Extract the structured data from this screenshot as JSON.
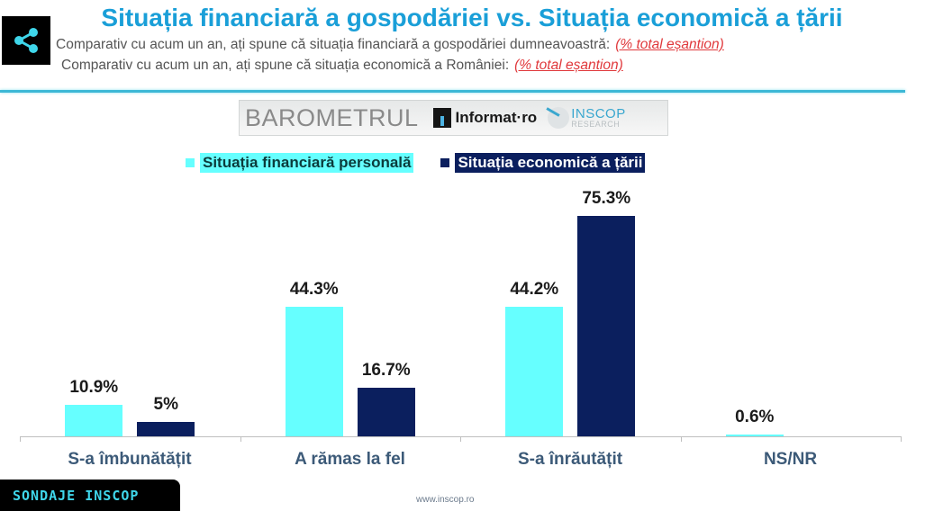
{
  "header": {
    "title": "Situația financiară a gospodăriei vs. Situația economică a țării",
    "subtitle_1": "Comparativ cu acum un an, ați spune că situația financiară a gospodăriei dumneavoastră:",
    "subtitle_1_note": "(% total eșantion)",
    "subtitle_2": "Comparativ cu acum un an, ați spune că situația economică a României:",
    "subtitle_2_note": "(% total eșantion)",
    "share_icon": "share-icon"
  },
  "logos": {
    "barometrul": "BAROMETRUL",
    "informat": "Informat·ro",
    "inscop": "INSCOP",
    "inscop_sub": "RESEARCH"
  },
  "colors": {
    "title": "#1a9fd8",
    "series_personal": "#66ffff",
    "series_country": "#0b1f5e",
    "note_red": "#e0383b",
    "category_label": "#3c5a78",
    "footer_accent": "#3fd6ea"
  },
  "chart_data": {
    "type": "bar",
    "title": "Situația financiară a gospodăriei vs. Situația economică a țării",
    "categories": [
      "S-a îmbunătățit",
      "A rămas la fel",
      "S-a înrăutățit",
      "NS/NR"
    ],
    "series": [
      {
        "name": "Situația financiară personală",
        "color": "#66ffff",
        "values": [
          10.9,
          44.3,
          44.2,
          0.6
        ],
        "labels": [
          "10.9%",
          "44.3%",
          "44.2%",
          "0.6%"
        ]
      },
      {
        "name": "Situația economică a țării",
        "color": "#0b1f5e",
        "values": [
          5,
          16.7,
          75.3,
          null
        ],
        "labels": [
          "5%",
          "16.7%",
          "75.3%",
          ""
        ]
      }
    ],
    "xlabel": "",
    "ylabel": "",
    "unit": "%",
    "grid": false,
    "legend_position": "top",
    "y_axis_visible": false
  },
  "footer": {
    "tag": "SONDAJE INSCOP",
    "url": "www.inscop.ro"
  }
}
